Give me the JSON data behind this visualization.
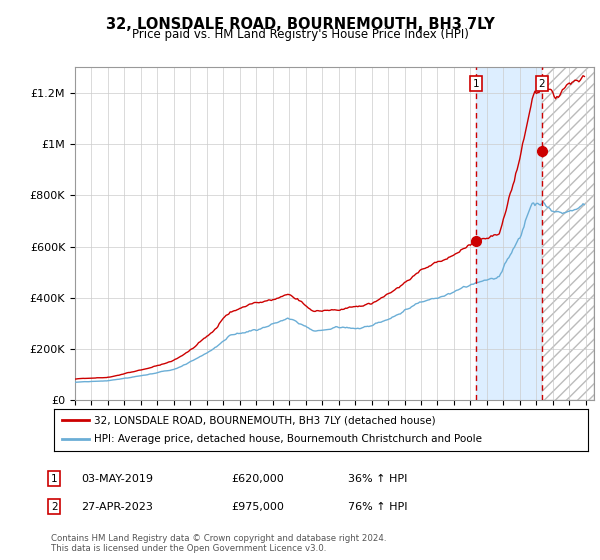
{
  "title": "32, LONSDALE ROAD, BOURNEMOUTH, BH3 7LY",
  "subtitle": "Price paid vs. HM Land Registry's House Price Index (HPI)",
  "legend_line1": "32, LONSDALE ROAD, BOURNEMOUTH, BH3 7LY (detached house)",
  "legend_line2": "HPI: Average price, detached house, Bournemouth Christchurch and Poole",
  "annotation1_date": "03-MAY-2019",
  "annotation1_price": "£620,000",
  "annotation1_hpi": "36% ↑ HPI",
  "annotation2_date": "27-APR-2023",
  "annotation2_price": "£975,000",
  "annotation2_hpi": "76% ↑ HPI",
  "footer": "Contains HM Land Registry data © Crown copyright and database right 2024.\nThis data is licensed under the Open Government Licence v3.0.",
  "purchase1_year": 2019.33,
  "purchase1_value": 620000,
  "purchase2_year": 2023.32,
  "purchase2_value": 975000,
  "hpi_color": "#6baed6",
  "price_color": "#cc0000",
  "vline_color": "#cc0000",
  "shade1_color": "#ddeeff",
  "ylim_max": 1300000,
  "xlim_min": 1995.0,
  "xlim_max": 2026.5
}
